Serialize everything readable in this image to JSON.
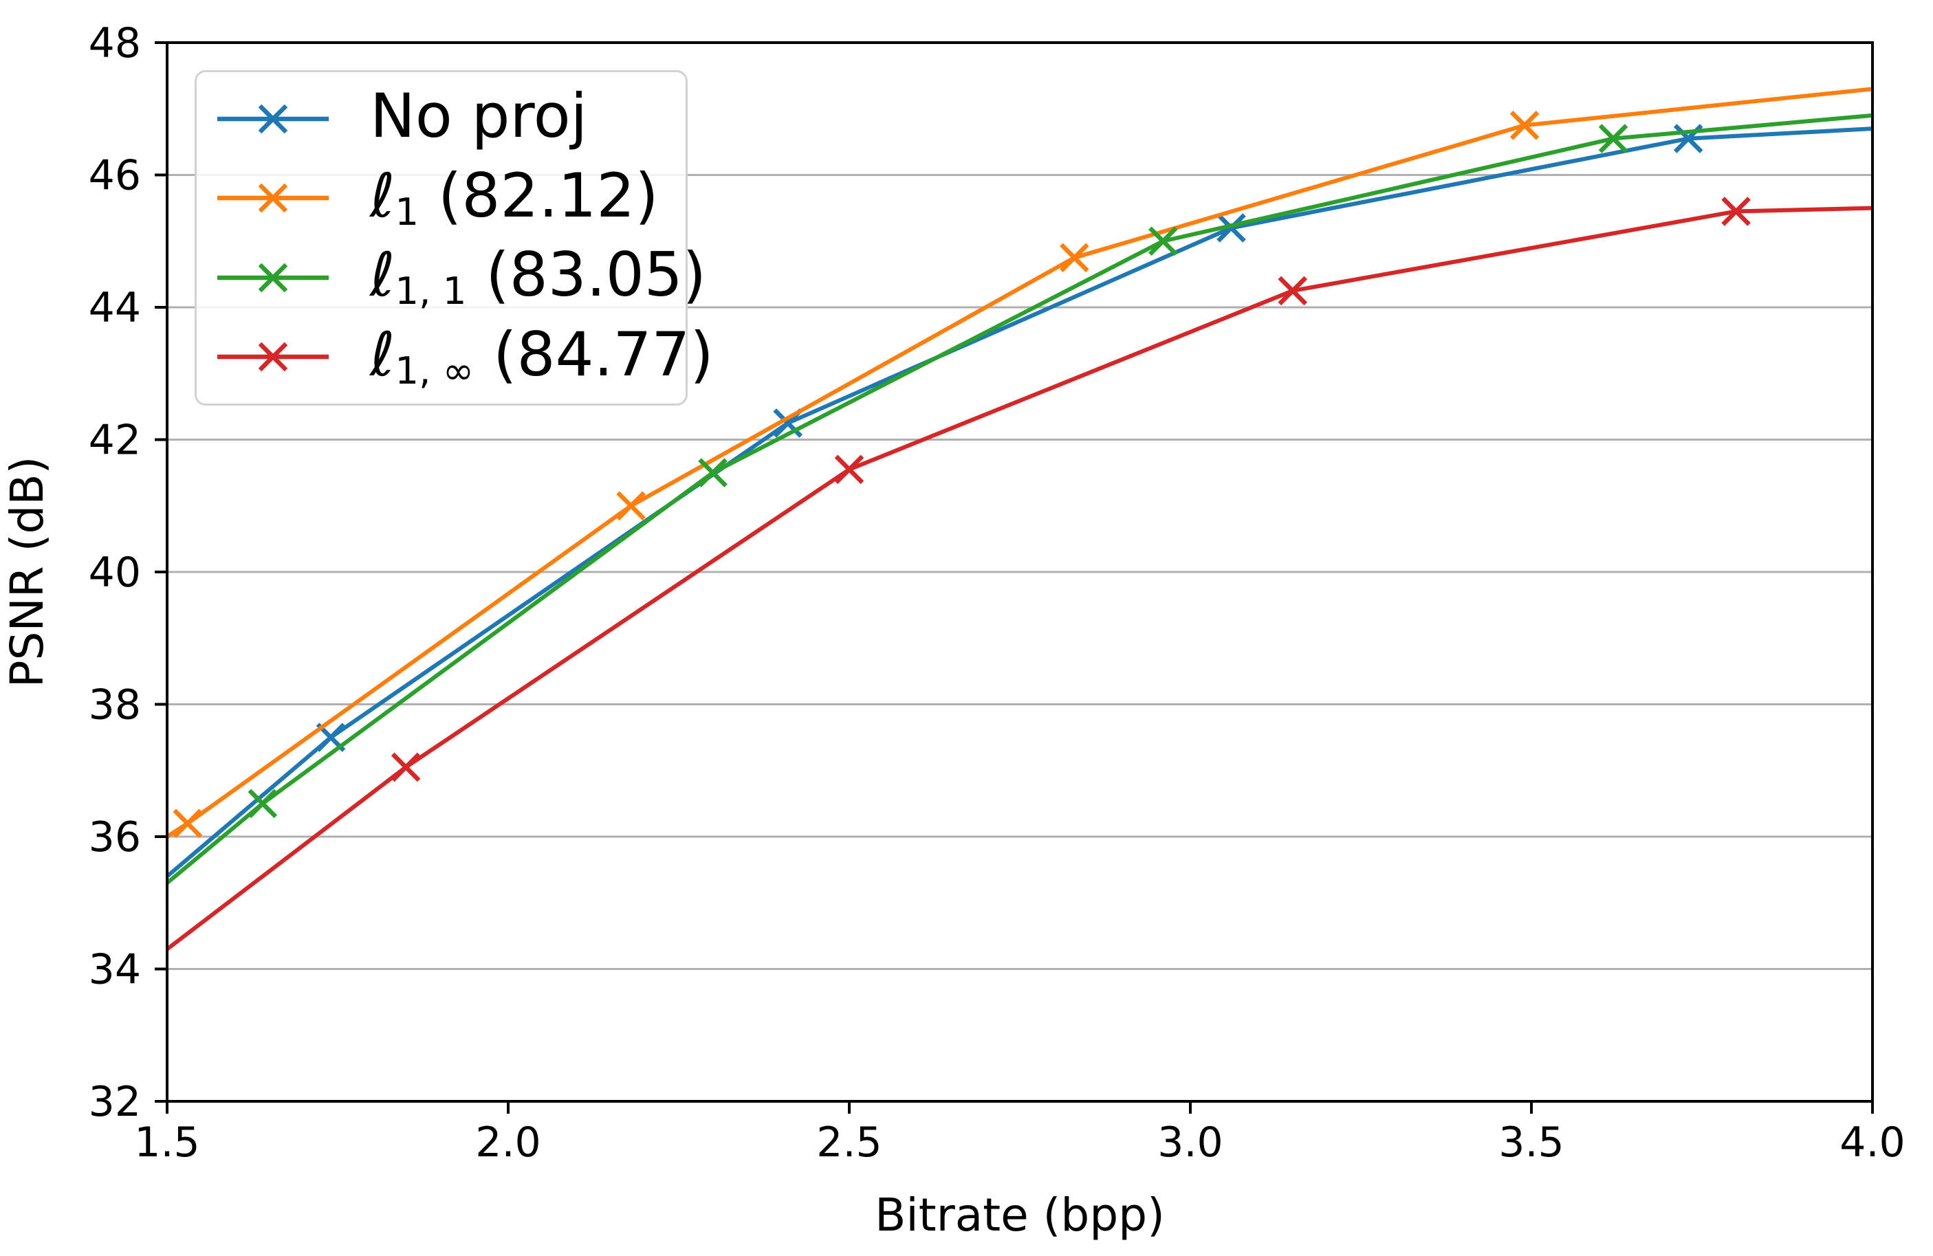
{
  "figure": {
    "background": "#ffffff",
    "text_color": "#000000",
    "grid_color": "#b0b0b0"
  },
  "chart_data": {
    "type": "line",
    "title": "",
    "xlabel": "Bitrate (bpp)",
    "ylabel": "PSNR (dB)",
    "xlim": [
      1.5,
      4.0
    ],
    "ylim": [
      32,
      48
    ],
    "x_ticks": [
      1.5,
      2.0,
      2.5,
      3.0,
      3.5,
      4.0
    ],
    "x_tick_labels": [
      "1.5",
      "2.0",
      "2.5",
      "3.0",
      "3.5",
      "4.0"
    ],
    "y_ticks": [
      32,
      34,
      36,
      38,
      40,
      42,
      44,
      46,
      48
    ],
    "y_tick_labels": [
      "32",
      "34",
      "36",
      "38",
      "40",
      "42",
      "44",
      "46",
      "48"
    ],
    "grid": "horizontal",
    "legend_position": "upper left",
    "series": [
      {
        "name": "No proj",
        "color": "#1f77b4",
        "marker": "x",
        "line": {
          "x": [
            1.5,
            1.74,
            2.41,
            3.06,
            3.73,
            4.0
          ],
          "y": [
            35.4,
            37.5,
            42.25,
            45.2,
            46.55,
            46.7
          ]
        },
        "markers": {
          "x": [
            1.74,
            2.41,
            3.06,
            3.73
          ],
          "y": [
            37.5,
            42.25,
            45.2,
            46.55
          ]
        }
      },
      {
        "name": "l1 (82.12)",
        "color": "#ff7f0e",
        "marker": "x",
        "line": {
          "x": [
            1.5,
            1.53,
            2.18,
            2.83,
            3.49,
            4.0
          ],
          "y": [
            36.0,
            36.2,
            41.0,
            44.75,
            46.75,
            47.3
          ]
        },
        "markers": {
          "x": [
            1.53,
            2.18,
            2.83,
            3.49
          ],
          "y": [
            36.2,
            41.0,
            44.75,
            46.75
          ]
        }
      },
      {
        "name": "l1,1 (83.05)",
        "color": "#2ca02c",
        "marker": "x",
        "line": {
          "x": [
            1.5,
            1.64,
            2.3,
            2.96,
            3.62,
            4.0
          ],
          "y": [
            35.3,
            36.5,
            41.5,
            45.0,
            46.55,
            46.9
          ]
        },
        "markers": {
          "x": [
            1.64,
            2.3,
            2.96,
            3.62
          ],
          "y": [
            36.5,
            41.5,
            45.0,
            46.55
          ]
        }
      },
      {
        "name": "l1,inf (84.77)",
        "color": "#d62728",
        "marker": "x",
        "line": {
          "x": [
            1.5,
            1.85,
            2.5,
            3.15,
            3.8,
            4.0
          ],
          "y": [
            34.3,
            37.05,
            41.55,
            44.25,
            45.45,
            45.5
          ]
        },
        "markers": {
          "x": [
            1.85,
            2.5,
            3.15,
            3.8
          ],
          "y": [
            37.05,
            41.55,
            44.25,
            45.45
          ]
        }
      }
    ]
  },
  "axes": {
    "xlabel": "Bitrate (bpp)",
    "ylabel": "PSNR (dB)"
  },
  "legend": {
    "items": [
      {
        "base": "No proj",
        "sub": "",
        "suffix": "",
        "color": "#1f77b4"
      },
      {
        "base": "ℓ",
        "sub": "1",
        "suffix": " (82.12)",
        "color": "#ff7f0e"
      },
      {
        "base": "ℓ",
        "sub": "1, 1",
        "suffix": " (83.05)",
        "color": "#2ca02c"
      },
      {
        "base": "ℓ",
        "sub": "1, ∞",
        "suffix": " (84.77)",
        "color": "#d62728"
      }
    ]
  }
}
